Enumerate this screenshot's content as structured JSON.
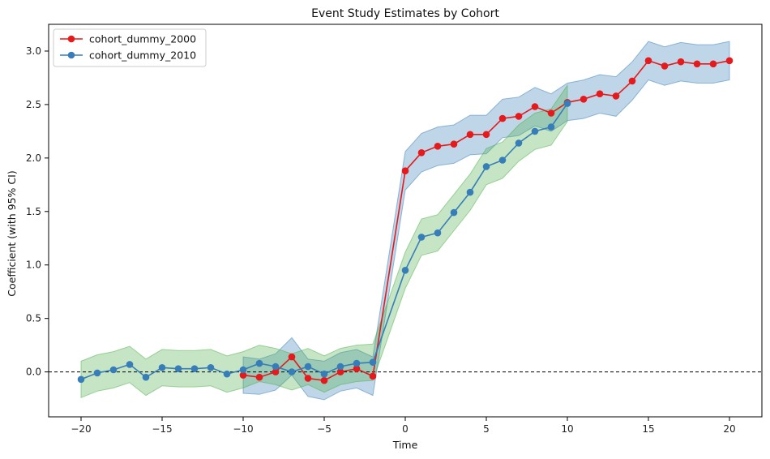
{
  "chart_data": {
    "type": "line",
    "title": "Event Study Estimates by Cohort",
    "xlabel": "Time",
    "ylabel": "Coefficient (with 95% CI)",
    "xlim": [
      -22,
      22
    ],
    "ylim": [
      -0.42,
      3.25
    ],
    "xticks": [
      -20,
      -15,
      -10,
      -5,
      0,
      5,
      10,
      15,
      20
    ],
    "xtick_labels": [
      "−20",
      "−15",
      "−10",
      "−5",
      "0",
      "5",
      "10",
      "15",
      "20"
    ],
    "yticks": [
      0.0,
      0.5,
      1.0,
      1.5,
      2.0,
      2.5,
      3.0
    ],
    "ytick_labels": [
      "0.0",
      "0.5",
      "1.0",
      "1.5",
      "2.0",
      "2.5",
      "3.0"
    ],
    "zero_line": true,
    "grid": false,
    "legend_position": "top-left",
    "series": [
      {
        "name": "cohort_dummy_2000",
        "color": "#e41a1c",
        "band_color": "#377eb8",
        "x": [
          -10,
          -9,
          -8,
          -7,
          -6,
          -5,
          -4,
          -3,
          -2,
          0,
          1,
          2,
          3,
          4,
          5,
          6,
          7,
          8,
          9,
          10,
          11,
          12,
          13,
          14,
          15,
          16,
          17,
          18,
          19,
          20
        ],
        "y": [
          -0.03,
          -0.05,
          0.0,
          0.14,
          -0.06,
          -0.08,
          0.0,
          0.03,
          -0.04,
          1.88,
          2.05,
          2.11,
          2.13,
          2.22,
          2.22,
          2.37,
          2.39,
          2.48,
          2.42,
          2.52,
          2.55,
          2.6,
          2.58,
          2.72,
          2.91,
          2.86,
          2.9,
          2.88,
          2.88,
          2.91
        ],
        "ci_low": [
          -0.2,
          -0.21,
          -0.17,
          -0.03,
          -0.23,
          -0.26,
          -0.18,
          -0.15,
          -0.22,
          1.7,
          1.87,
          1.93,
          1.95,
          2.03,
          2.04,
          2.19,
          2.21,
          2.3,
          2.25,
          2.35,
          2.37,
          2.42,
          2.39,
          2.54,
          2.73,
          2.68,
          2.72,
          2.7,
          2.7,
          2.73
        ],
        "ci_high": [
          0.14,
          0.12,
          0.17,
          0.32,
          0.12,
          0.1,
          0.18,
          0.21,
          0.14,
          2.06,
          2.23,
          2.29,
          2.31,
          2.4,
          2.4,
          2.55,
          2.57,
          2.66,
          2.6,
          2.7,
          2.73,
          2.78,
          2.76,
          2.9,
          3.09,
          3.04,
          3.08,
          3.06,
          3.06,
          3.09
        ]
      },
      {
        "name": "cohort_dummy_2010",
        "color": "#377eb8",
        "band_color": "#4daf4a",
        "x": [
          -20,
          -19,
          -18,
          -17,
          -16,
          -15,
          -14,
          -13,
          -12,
          -11,
          -10,
          -9,
          -8,
          -7,
          -6,
          -5,
          -4,
          -3,
          -2,
          0,
          1,
          2,
          3,
          4,
          5,
          6,
          7,
          8,
          9,
          10
        ],
        "y": [
          -0.07,
          -0.01,
          0.02,
          0.07,
          -0.05,
          0.04,
          0.03,
          0.03,
          0.04,
          -0.02,
          0.02,
          0.08,
          0.05,
          0.0,
          0.05,
          -0.02,
          0.05,
          0.08,
          0.09,
          0.95,
          1.26,
          1.3,
          1.49,
          1.68,
          1.92,
          1.98,
          2.14,
          2.25,
          2.29,
          2.51
        ],
        "ci_low": [
          -0.24,
          -0.18,
          -0.15,
          -0.1,
          -0.22,
          -0.13,
          -0.14,
          -0.14,
          -0.13,
          -0.19,
          -0.15,
          -0.09,
          -0.12,
          -0.17,
          -0.12,
          -0.19,
          -0.12,
          -0.09,
          -0.08,
          0.78,
          1.09,
          1.13,
          1.32,
          1.51,
          1.75,
          1.81,
          1.97,
          2.08,
          2.12,
          2.34
        ],
        "ci_high": [
          0.1,
          0.16,
          0.19,
          0.24,
          0.12,
          0.21,
          0.2,
          0.2,
          0.21,
          0.15,
          0.19,
          0.25,
          0.22,
          0.17,
          0.22,
          0.15,
          0.22,
          0.25,
          0.26,
          1.12,
          1.43,
          1.47,
          1.66,
          1.85,
          2.09,
          2.15,
          2.31,
          2.42,
          2.46,
          2.68
        ]
      }
    ]
  }
}
